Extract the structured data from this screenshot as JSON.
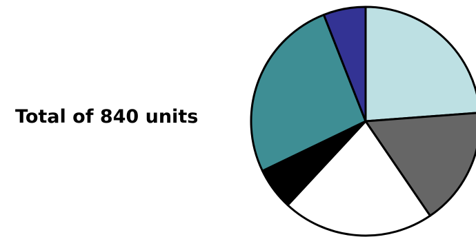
{
  "chart_data": {
    "type": "pie",
    "annotation": "Total of 840 units",
    "total": 840,
    "slices": [
      {
        "value": 200,
        "color": "#BDE0E3"
      },
      {
        "value": 140,
        "color": "#666666"
      },
      {
        "value": 180,
        "color": "#FFFFFF"
      },
      {
        "value": 50,
        "color": "#000000"
      },
      {
        "value": 220,
        "color": "#3E8E94"
      },
      {
        "value": 50,
        "color": "#333394"
      }
    ]
  }
}
